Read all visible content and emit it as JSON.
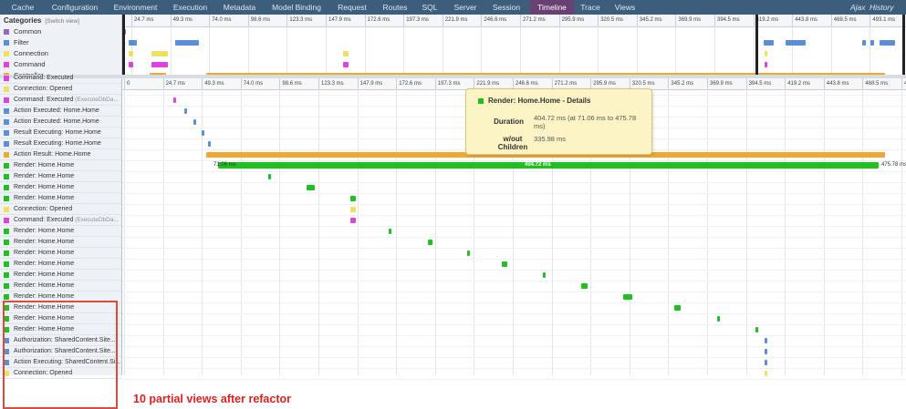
{
  "nav": {
    "tabs": [
      "Cache",
      "Configuration",
      "Environment",
      "Execution",
      "Metadata",
      "Model Binding",
      "Request",
      "Routes",
      "SQL",
      "Server",
      "Session",
      "Timeline",
      "Trace",
      "Views"
    ],
    "active": "Timeline",
    "right_tabs": [
      "Ajax",
      "History"
    ]
  },
  "overview": {
    "heading": "Categories",
    "switch_view": "[Switch view]",
    "ticks": [
      "24.7 ms",
      "49.3 ms",
      "74.0 ms",
      "98.6 ms",
      "123.3 ms",
      "147.9 ms",
      "172.6 ms",
      "197.3 ms",
      "221.9 ms",
      "246.6 ms",
      "271.2 ms",
      "295.9 ms",
      "320.5 ms",
      "345.2 ms",
      "369.9 ms",
      "394.5 ms",
      "419.2 ms",
      "443.8 ms",
      "468.5 ms",
      "493.1 ms"
    ],
    "categories": [
      {
        "label": "Common",
        "color": "#8e6cc4"
      },
      {
        "label": "Filter",
        "color": "#5a8fd8"
      },
      {
        "label": "Connection",
        "color": "#f0e060"
      },
      {
        "label": "Command",
        "color": "#e040e0"
      },
      {
        "label": "Controller",
        "color": "#f0a830"
      }
    ]
  },
  "detail": {
    "ticks": [
      "0",
      "24.7 ms",
      "49.3 ms",
      "74.0 ms",
      "98.6 ms",
      "123.3 ms",
      "147.9 ms",
      "172.6 ms",
      "197.3 ms",
      "221.9 ms",
      "246.6 ms",
      "271.2 ms",
      "295.9 ms",
      "320.5 ms",
      "345.2 ms",
      "369.9 ms",
      "394.5 ms",
      "419.2 ms",
      "443.8 ms",
      "468.5 ms",
      "493.1 ms"
    ],
    "rows": [
      {
        "label": "Command: Executed",
        "sub": "",
        "color": "#e040e0"
      },
      {
        "label": "Connection: Opened",
        "sub": "",
        "color": "#f0e060"
      },
      {
        "label": "Command: Executed",
        "sub": "(ExecuteDbDa...",
        "color": "#e040e0"
      },
      {
        "label": "Action Executed: Home.Home",
        "sub": "",
        "color": "#5a8fd8"
      },
      {
        "label": "Action Executed: Home.Home",
        "sub": "",
        "color": "#5a8fd8"
      },
      {
        "label": "Result Executing: Home.Home",
        "sub": "",
        "color": "#5a8fd8"
      },
      {
        "label": "Result Executing: Home.Home",
        "sub": "",
        "color": "#5a8fd8"
      },
      {
        "label": "Action Result: Home.Home",
        "sub": "",
        "color": "#f0a830"
      },
      {
        "label": "Render: Home.Home",
        "sub": "",
        "color": "#1ec21e"
      },
      {
        "label": "Render: Home.Home",
        "sub": "",
        "color": "#1ec21e"
      },
      {
        "label": "Render: Home.Home",
        "sub": "",
        "color": "#1ec21e"
      },
      {
        "label": "Render: Home.Home",
        "sub": "",
        "color": "#1ec21e"
      },
      {
        "label": "Connection: Opened",
        "sub": "",
        "color": "#f0e060"
      },
      {
        "label": "Command: Executed",
        "sub": "(ExecuteDbDa...",
        "color": "#e040e0"
      },
      {
        "label": "Render: Home.Home",
        "sub": "",
        "color": "#1ec21e"
      },
      {
        "label": "Render: Home.Home",
        "sub": "",
        "color": "#1ec21e"
      },
      {
        "label": "Render: Home.Home",
        "sub": "",
        "color": "#1ec21e"
      },
      {
        "label": "Render: Home.Home",
        "sub": "",
        "color": "#1ec21e"
      },
      {
        "label": "Render: Home.Home",
        "sub": "",
        "color": "#1ec21e"
      },
      {
        "label": "Render: Home.Home",
        "sub": "",
        "color": "#1ec21e"
      },
      {
        "label": "Render: Home.Home",
        "sub": "",
        "color": "#1ec21e"
      },
      {
        "label": "Render: Home.Home",
        "sub": "",
        "color": "#1ec21e"
      },
      {
        "label": "Render: Home.Home",
        "sub": "",
        "color": "#1ec21e"
      },
      {
        "label": "Render: Home.Home",
        "sub": "",
        "color": "#1ec21e"
      },
      {
        "label": "Authorization: SharedContent.Site...",
        "sub": "",
        "color": "#5a8fd8"
      },
      {
        "label": "Authorization: SharedContent.Site...",
        "sub": "",
        "color": "#5a8fd8"
      },
      {
        "label": "Action Executing: SharedContent.Si...",
        "sub": "",
        "color": "#5a8fd8"
      },
      {
        "label": "Connection: Opened",
        "sub": "",
        "color": "#f0e060"
      }
    ],
    "long_bar": {
      "start_label": "71.06 ms",
      "end_label": "475.78 ms",
      "value_label": "404.72 ms"
    }
  },
  "tooltip": {
    "title": "Render: Home.Home - Details",
    "duration_key": "Duration",
    "duration_val": "404.72 ms (at 71.06 ms to 475.78 ms)",
    "children_key": "w/out Children",
    "children_val": "335.98 ms"
  },
  "annotation": "10 partial views after refactor"
}
